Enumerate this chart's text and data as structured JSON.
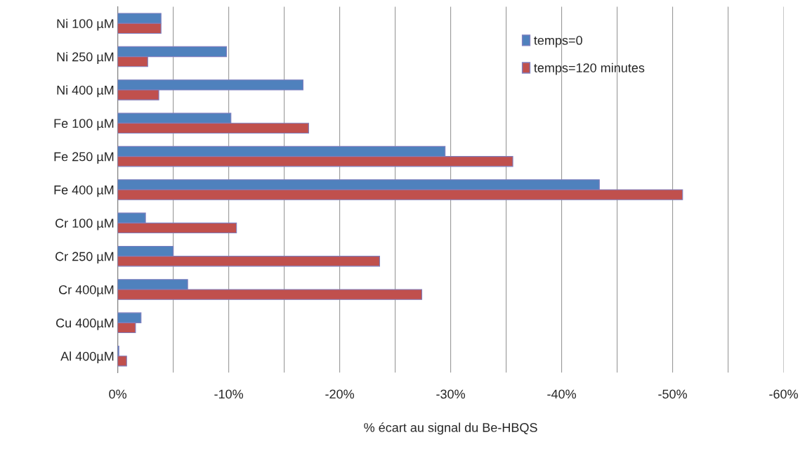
{
  "chart_data": {
    "type": "bar",
    "orientation": "horizontal",
    "xlabel": "% écart au signal du Be-HBQS",
    "categories": [
      "Ni 100 µM",
      "Ni 250 µM",
      "Ni 400 µM",
      "Fe 100 µM",
      "Fe 250 µM",
      "Fe 400 µM",
      "Cr 100 µM",
      "Cr 250 µM",
      "Cr 400µM",
      "Cu 400µM",
      "Al 400µM"
    ],
    "series": [
      {
        "name": "temps=0",
        "color": "#4f81bd",
        "values": [
          -3.9,
          -9.8,
          -16.7,
          -10.2,
          -29.5,
          -43.4,
          -2.5,
          -5.0,
          -6.3,
          -2.1,
          -0.1
        ]
      },
      {
        "name": "temps=120 minutes",
        "color": "#c0504d",
        "values": [
          -3.9,
          -2.7,
          -3.7,
          -17.2,
          -35.6,
          -50.9,
          -10.7,
          -23.6,
          -27.4,
          -1.6,
          -0.8
        ]
      }
    ],
    "xlim": [
      0,
      -60
    ],
    "xticks": [
      {
        "value": 0,
        "label": "0%"
      },
      {
        "value": -5,
        "label": null
      },
      {
        "value": -10,
        "label": "-10%"
      },
      {
        "value": -15,
        "label": null
      },
      {
        "value": -20,
        "label": "-20%"
      },
      {
        "value": -25,
        "label": null
      },
      {
        "value": -30,
        "label": "-30%"
      },
      {
        "value": -35,
        "label": null
      },
      {
        "value": -40,
        "label": "-40%"
      },
      {
        "value": -45,
        "label": null
      },
      {
        "value": -50,
        "label": "-50%"
      },
      {
        "value": -55,
        "label": null
      },
      {
        "value": -60,
        "label": "-60%"
      }
    ],
    "grid": "x",
    "legend": "top right"
  }
}
